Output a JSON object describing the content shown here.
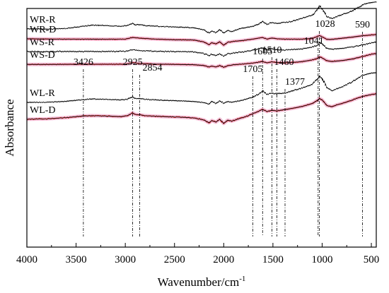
{
  "chart_data": {
    "type": "line",
    "title": "",
    "xlabel": "Wavenumber/cm",
    "xlabel_superscript": "-1",
    "ylabel": "Absorbance",
    "x_reversed": true,
    "xlim": [
      4000,
      450
    ],
    "x_ticks": [
      4000,
      3500,
      3000,
      2500,
      2000,
      1500,
      1000,
      500
    ],
    "y_ticks_shown": false,
    "grid": false,
    "legend": "none",
    "series": [
      {
        "name": "WR-R",
        "color": "#000000",
        "points": [
          [
            4000,
            0.876
          ],
          [
            3800,
            0.878
          ],
          [
            3600,
            0.873
          ],
          [
            3500,
            0.866
          ],
          [
            3426,
            0.86
          ],
          [
            3350,
            0.853
          ],
          [
            3200,
            0.856
          ],
          [
            3050,
            0.86
          ],
          [
            2980,
            0.855
          ],
          [
            2925,
            0.84
          ],
          [
            2900,
            0.852
          ],
          [
            2854,
            0.85
          ],
          [
            2800,
            0.855
          ],
          [
            2600,
            0.862
          ],
          [
            2400,
            0.866
          ],
          [
            2300,
            0.87
          ],
          [
            2200,
            0.882
          ],
          [
            2150,
            0.902
          ],
          [
            2120,
            0.89
          ],
          [
            2080,
            0.9
          ],
          [
            2040,
            0.882
          ],
          [
            2000,
            0.902
          ],
          [
            1960,
            0.886
          ],
          [
            1920,
            0.894
          ],
          [
            1850,
            0.878
          ],
          [
            1800,
            0.872
          ],
          [
            1750,
            0.865
          ],
          [
            1705,
            0.86
          ],
          [
            1650,
            0.848
          ],
          [
            1605,
            0.828
          ],
          [
            1560,
            0.848
          ],
          [
            1510,
            0.836
          ],
          [
            1460,
            0.843
          ],
          [
            1400,
            0.837
          ],
          [
            1377,
            0.836
          ],
          [
            1300,
            0.828
          ],
          [
            1200,
            0.81
          ],
          [
            1100,
            0.79
          ],
          [
            1041,
            0.752
          ],
          [
            1028,
            0.73
          ],
          [
            1000,
            0.752
          ],
          [
            950,
            0.8
          ],
          [
            900,
            0.81
          ],
          [
            850,
            0.8
          ],
          [
            800,
            0.788
          ],
          [
            700,
            0.765
          ],
          [
            650,
            0.748
          ],
          [
            600,
            0.732
          ],
          [
            590,
            0.725
          ],
          [
            550,
            0.718
          ],
          [
            500,
            0.712
          ],
          [
            450,
            0.708
          ]
        ]
      },
      {
        "name": "WR-D",
        "color": "#000000",
        "points": [
          [
            4000,
            0.938
          ],
          [
            3700,
            0.94
          ],
          [
            3426,
            0.94
          ],
          [
            3200,
            0.941
          ],
          [
            3000,
            0.94
          ],
          [
            2925,
            0.93
          ],
          [
            2854,
            0.934
          ],
          [
            2700,
            0.94
          ],
          [
            2500,
            0.944
          ],
          [
            2300,
            0.946
          ],
          [
            2200,
            0.958
          ],
          [
            2150,
            0.975
          ],
          [
            2120,
            0.962
          ],
          [
            2080,
            0.97
          ],
          [
            2040,
            0.956
          ],
          [
            2000,
            0.978
          ],
          [
            1960,
            0.96
          ],
          [
            1900,
            0.954
          ],
          [
            1800,
            0.948
          ],
          [
            1705,
            0.94
          ],
          [
            1605,
            0.93
          ],
          [
            1560,
            0.94
          ],
          [
            1510,
            0.933
          ],
          [
            1460,
            0.938
          ],
          [
            1377,
            0.94
          ],
          [
            1300,
            0.94
          ],
          [
            1200,
            0.94
          ],
          [
            1100,
            0.936
          ],
          [
            1028,
            0.918
          ],
          [
            1000,
            0.926
          ],
          [
            950,
            0.942
          ],
          [
            900,
            0.942
          ],
          [
            800,
            0.935
          ],
          [
            700,
            0.928
          ],
          [
            600,
            0.92
          ],
          [
            500,
            0.914
          ],
          [
            450,
            0.912
          ]
        ]
      },
      {
        "name": "WS-R",
        "color": "#000000",
        "points": [
          [
            4000,
            1.017
          ],
          [
            3700,
            1.018
          ],
          [
            3426,
            1.017
          ],
          [
            3200,
            1.017
          ],
          [
            3000,
            1.016
          ],
          [
            2925,
            1.008
          ],
          [
            2854,
            1.012
          ],
          [
            2700,
            1.016
          ],
          [
            2500,
            1.018
          ],
          [
            2300,
            1.02
          ],
          [
            2200,
            1.03
          ],
          [
            2150,
            1.044
          ],
          [
            2120,
            1.034
          ],
          [
            2080,
            1.042
          ],
          [
            2040,
            1.03
          ],
          [
            2000,
            1.046
          ],
          [
            1960,
            1.032
          ],
          [
            1900,
            1.026
          ],
          [
            1800,
            1.018
          ],
          [
            1705,
            1.01
          ],
          [
            1605,
            0.995
          ],
          [
            1560,
            1.008
          ],
          [
            1510,
            1.0
          ],
          [
            1460,
            1.006
          ],
          [
            1377,
            1.008
          ],
          [
            1300,
            1.005
          ],
          [
            1200,
            1.0
          ],
          [
            1100,
            0.99
          ],
          [
            1041,
            0.975
          ],
          [
            1028,
            0.96
          ],
          [
            1000,
            0.972
          ],
          [
            950,
            0.998
          ],
          [
            900,
            1.005
          ],
          [
            800,
            0.998
          ],
          [
            700,
            0.99
          ],
          [
            600,
            0.978
          ],
          [
            500,
            0.964
          ],
          [
            450,
            0.958
          ]
        ]
      },
      {
        "name": "WS-D",
        "color": "#000000",
        "points": [
          [
            4000,
            1.098
          ],
          [
            3700,
            1.098
          ],
          [
            3426,
            1.097
          ],
          [
            3200,
            1.097
          ],
          [
            3000,
            1.097
          ],
          [
            2925,
            1.088
          ],
          [
            2854,
            1.092
          ],
          [
            2700,
            1.096
          ],
          [
            2500,
            1.098
          ],
          [
            2300,
            1.1
          ],
          [
            2200,
            1.105
          ],
          [
            2150,
            1.114
          ],
          [
            2120,
            1.108
          ],
          [
            2080,
            1.114
          ],
          [
            2040,
            1.105
          ],
          [
            2000,
            1.116
          ],
          [
            1960,
            1.106
          ],
          [
            1900,
            1.1
          ],
          [
            1800,
            1.095
          ],
          [
            1705,
            1.09
          ],
          [
            1605,
            1.08
          ],
          [
            1560,
            1.088
          ],
          [
            1510,
            1.082
          ],
          [
            1460,
            1.086
          ],
          [
            1377,
            1.088
          ],
          [
            1300,
            1.086
          ],
          [
            1200,
            1.08
          ],
          [
            1100,
            1.07
          ],
          [
            1041,
            1.058
          ],
          [
            1028,
            1.05
          ],
          [
            1000,
            1.058
          ],
          [
            950,
            1.075
          ],
          [
            900,
            1.08
          ],
          [
            800,
            1.074
          ],
          [
            700,
            1.065
          ],
          [
            600,
            1.05
          ],
          [
            500,
            1.035
          ],
          [
            450,
            1.03
          ]
        ]
      },
      {
        "name": "WL-R",
        "color": "#000000",
        "points": [
          [
            4000,
            1.335
          ],
          [
            3800,
            1.334
          ],
          [
            3600,
            1.328
          ],
          [
            3500,
            1.322
          ],
          [
            3426,
            1.318
          ],
          [
            3350,
            1.313
          ],
          [
            3200,
            1.316
          ],
          [
            3050,
            1.32
          ],
          [
            2980,
            1.316
          ],
          [
            2925,
            1.3
          ],
          [
            2900,
            1.312
          ],
          [
            2854,
            1.31
          ],
          [
            2800,
            1.316
          ],
          [
            2600,
            1.322
          ],
          [
            2400,
            1.326
          ],
          [
            2300,
            1.33
          ],
          [
            2200,
            1.336
          ],
          [
            2150,
            1.345
          ],
          [
            2120,
            1.328
          ],
          [
            2080,
            1.342
          ],
          [
            2040,
            1.326
          ],
          [
            2000,
            1.34
          ],
          [
            1960,
            1.33
          ],
          [
            1920,
            1.334
          ],
          [
            1850,
            1.326
          ],
          [
            1800,
            1.32
          ],
          [
            1750,
            1.31
          ],
          [
            1705,
            1.302
          ],
          [
            1650,
            1.285
          ],
          [
            1605,
            1.262
          ],
          [
            1560,
            1.285
          ],
          [
            1510,
            1.278
          ],
          [
            1460,
            1.282
          ],
          [
            1400,
            1.278
          ],
          [
            1377,
            1.276
          ],
          [
            1300,
            1.262
          ],
          [
            1200,
            1.245
          ],
          [
            1100,
            1.222
          ],
          [
            1041,
            1.185
          ],
          [
            1028,
            1.17
          ],
          [
            1000,
            1.185
          ],
          [
            950,
            1.245
          ],
          [
            900,
            1.262
          ],
          [
            850,
            1.25
          ],
          [
            800,
            1.238
          ],
          [
            700,
            1.208
          ],
          [
            650,
            1.19
          ],
          [
            600,
            1.17
          ],
          [
            590,
            1.168
          ],
          [
            550,
            1.16
          ],
          [
            500,
            1.152
          ],
          [
            450,
            1.15
          ]
        ]
      },
      {
        "name": "WL-D",
        "color": "#000000",
        "points": [
          [
            4000,
            1.44
          ],
          [
            3800,
            1.438
          ],
          [
            3600,
            1.43
          ],
          [
            3500,
            1.424
          ],
          [
            3426,
            1.42
          ],
          [
            3350,
            1.418
          ],
          [
            3200,
            1.42
          ],
          [
            3050,
            1.424
          ],
          [
            2980,
            1.418
          ],
          [
            2925,
            1.4
          ],
          [
            2900,
            1.41
          ],
          [
            2854,
            1.412
          ],
          [
            2800,
            1.418
          ],
          [
            2600,
            1.424
          ],
          [
            2400,
            1.428
          ],
          [
            2300,
            1.432
          ],
          [
            2200,
            1.445
          ],
          [
            2150,
            1.462
          ],
          [
            2120,
            1.448
          ],
          [
            2080,
            1.458
          ],
          [
            2040,
            1.44
          ],
          [
            2000,
            1.466
          ],
          [
            1960,
            1.446
          ],
          [
            1920,
            1.452
          ],
          [
            1850,
            1.438
          ],
          [
            1800,
            1.428
          ],
          [
            1750,
            1.418
          ],
          [
            1705,
            1.405
          ],
          [
            1650,
            1.392
          ],
          [
            1605,
            1.378
          ],
          [
            1560,
            1.392
          ],
          [
            1510,
            1.384
          ],
          [
            1460,
            1.388
          ],
          [
            1400,
            1.382
          ],
          [
            1377,
            1.38
          ],
          [
            1300,
            1.372
          ],
          [
            1200,
            1.36
          ],
          [
            1100,
            1.342
          ],
          [
            1041,
            1.32
          ],
          [
            1028,
            1.31
          ],
          [
            1000,
            1.32
          ],
          [
            950,
            1.355
          ],
          [
            900,
            1.362
          ],
          [
            850,
            1.35
          ],
          [
            800,
            1.342
          ],
          [
            700,
            1.322
          ],
          [
            650,
            1.31
          ],
          [
            600,
            1.3
          ],
          [
            590,
            1.298
          ],
          [
            550,
            1.292
          ],
          [
            500,
            1.286
          ],
          [
            450,
            1.282
          ]
        ]
      }
    ],
    "peak_markers": [
      {
        "label": "3426",
        "x": 3426
      },
      {
        "label": "2925",
        "x": 2925
      },
      {
        "label": "2854",
        "x": 2854
      },
      {
        "label": "1705",
        "x": 1705
      },
      {
        "label": "1605",
        "x": 1605
      },
      {
        "label": "1510",
        "x": 1510
      },
      {
        "label": "1460",
        "x": 1460
      },
      {
        "label": "1377",
        "x": 1377
      },
      {
        "label": "1041",
        "x": 1041
      },
      {
        "label": "1028",
        "x": 1028
      },
      {
        "label": "590",
        "x": 590
      }
    ]
  }
}
